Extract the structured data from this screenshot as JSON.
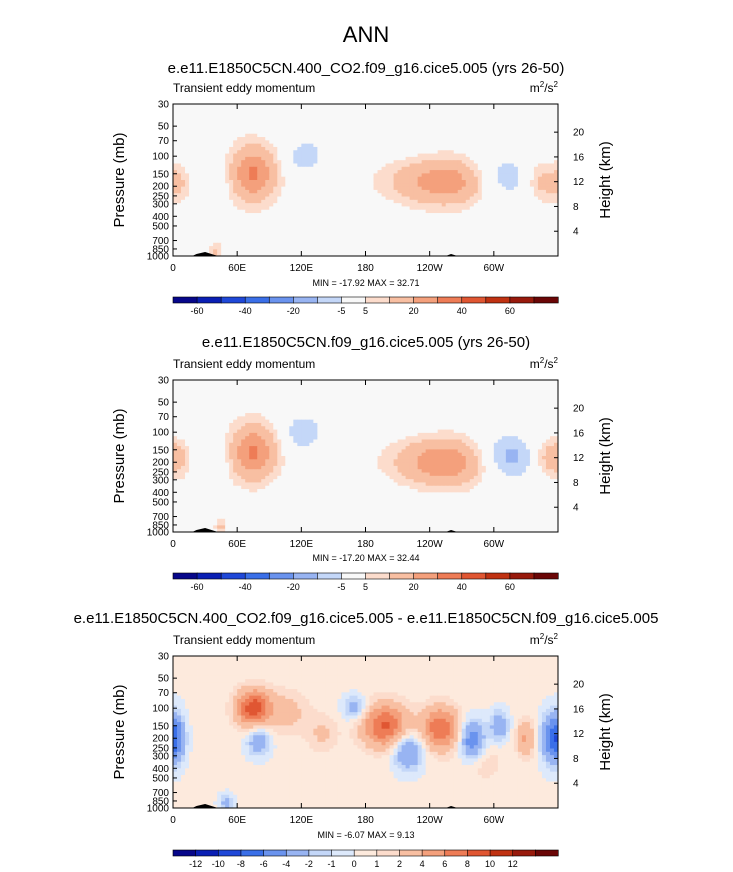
{
  "main_title": "ANN",
  "chart_data": [
    {
      "type": "heatmap",
      "title": "e.e11.E1850C5CN.400_CO2.f09_g16.cice5.005 (yrs 26-50)",
      "subtitle": "Transient eddy momentum",
      "units_base": "m",
      "units_exp1": "2",
      "units_mid": "/s",
      "units_exp2": "2",
      "ylabel_left": "Pressure (mb)",
      "ylabel_right": "Height (km)",
      "x_ticks": [
        "0",
        "60E",
        "120E",
        "180",
        "120W",
        "60W"
      ],
      "x_tick_values": [
        0,
        60,
        120,
        180,
        240,
        300
      ],
      "xlim": [
        0,
        360
      ],
      "y_ticks": [
        "30",
        "50",
        "70",
        "100",
        "150",
        "200",
        "250",
        "300",
        "400",
        "500",
        "700",
        "850",
        "1000"
      ],
      "y_tick_values": [
        30,
        50,
        70,
        100,
        150,
        200,
        250,
        300,
        400,
        500,
        700,
        850,
        1000
      ],
      "ylim": [
        30,
        1000
      ],
      "height_ticks": [
        "20",
        "16",
        "12",
        "8",
        "4"
      ],
      "height_values": [
        20,
        16,
        12,
        8,
        4
      ],
      "stats": "MIN = -17.92  MAX =  32.71",
      "min": -17.92,
      "max": 32.71,
      "colorbar_labels": [
        "-60",
        "-40",
        "-20",
        "-5",
        "5",
        "20",
        "40",
        "60"
      ],
      "colorbar_levels": [
        -70,
        -60,
        -50,
        -40,
        -30,
        -20,
        -10,
        -5,
        5,
        10,
        20,
        30,
        40,
        50,
        60,
        70
      ],
      "background_value": 2,
      "features": [
        {
          "lon": 75,
          "p": 150,
          "value": 30,
          "dlon": 14,
          "dp": 0.42
        },
        {
          "lon": 258,
          "p": 180,
          "value": 26,
          "dlon": 34,
          "dp": 0.36
        },
        {
          "lon": 345,
          "p": 180,
          "value": 12,
          "dlon": 10,
          "dp": 0.3
        },
        {
          "lon": 5,
          "p": 180,
          "value": 10,
          "dlon": 8,
          "dp": 0.3
        },
        {
          "lon": 124,
          "p": 100,
          "value": -11,
          "dlon": 13,
          "dp": 0.3
        },
        {
          "lon": 305,
          "p": 170,
          "value": -17,
          "dlon": 22,
          "dp": 0.4
        },
        {
          "lon": 45,
          "p": 160,
          "value": -5,
          "dlon": 6,
          "dp": 0.3
        },
        {
          "lon": 40,
          "p": 900,
          "value": 10,
          "dlon": 4,
          "dp": 0.15
        },
        {
          "lon": 15,
          "p": 60,
          "value": -4,
          "dlon": 8,
          "dp": 0.7
        },
        {
          "lon": 205,
          "p": 70,
          "value": -3,
          "dlon": 30,
          "dp": 0.3
        },
        {
          "lon": 170,
          "p": 600,
          "value": -3,
          "dlon": 50,
          "dp": 0.4
        },
        {
          "lon": 120,
          "p": 900,
          "value": -3,
          "dlon": 40,
          "dp": 0.2
        },
        {
          "lon": 295,
          "p": 600,
          "value": -4,
          "dlon": 10,
          "dp": 0.4
        }
      ]
    },
    {
      "type": "heatmap",
      "title": "e.e11.E1850C5CN.f09_g16.cice5.005 (yrs 26-50)",
      "subtitle": "Transient eddy momentum",
      "units_base": "m",
      "units_exp1": "2",
      "units_mid": "/s",
      "units_exp2": "2",
      "ylabel_left": "Pressure (mb)",
      "ylabel_right": "Height (km)",
      "x_ticks": [
        "0",
        "60E",
        "120E",
        "180",
        "120W",
        "60W"
      ],
      "x_tick_values": [
        0,
        60,
        120,
        180,
        240,
        300
      ],
      "xlim": [
        0,
        360
      ],
      "y_ticks": [
        "30",
        "50",
        "70",
        "100",
        "150",
        "200",
        "250",
        "300",
        "400",
        "500",
        "700",
        "850",
        "1000"
      ],
      "y_tick_values": [
        30,
        50,
        70,
        100,
        150,
        200,
        250,
        300,
        400,
        500,
        700,
        850,
        1000
      ],
      "ylim": [
        30,
        1000
      ],
      "height_ticks": [
        "20",
        "16",
        "12",
        "8",
        "4"
      ],
      "height_values": [
        20,
        16,
        12,
        8,
        4
      ],
      "stats": "MIN = -17.20  MAX =  32.44",
      "min": -17.2,
      "max": 32.44,
      "colorbar_labels": [
        "-60",
        "-40",
        "-20",
        "-5",
        "5",
        "20",
        "40",
        "60"
      ],
      "colorbar_levels": [
        -70,
        -60,
        -50,
        -40,
        -30,
        -20,
        -10,
        -5,
        5,
        10,
        20,
        30,
        40,
        50,
        60,
        70
      ],
      "background_value": 2,
      "features": [
        {
          "lon": 75,
          "p": 160,
          "value": 30,
          "dlon": 14,
          "dp": 0.42
        },
        {
          "lon": 255,
          "p": 200,
          "value": 28,
          "dlon": 30,
          "dp": 0.36
        },
        {
          "lon": 350,
          "p": 180,
          "value": 12,
          "dlon": 9,
          "dp": 0.3
        },
        {
          "lon": 5,
          "p": 180,
          "value": 12,
          "dlon": 8,
          "dp": 0.3
        },
        {
          "lon": 122,
          "p": 100,
          "value": -12,
          "dlon": 13,
          "dp": 0.3
        },
        {
          "lon": 310,
          "p": 180,
          "value": -17,
          "dlon": 22,
          "dp": 0.4
        },
        {
          "lon": 45,
          "p": 170,
          "value": -5,
          "dlon": 6,
          "dp": 0.3
        },
        {
          "lon": 45,
          "p": 900,
          "value": 10,
          "dlon": 4,
          "dp": 0.15
        },
        {
          "lon": 15,
          "p": 60,
          "value": -4,
          "dlon": 8,
          "dp": 0.7
        },
        {
          "lon": 205,
          "p": 70,
          "value": -3,
          "dlon": 30,
          "dp": 0.3
        },
        {
          "lon": 170,
          "p": 600,
          "value": -3,
          "dlon": 50,
          "dp": 0.4
        },
        {
          "lon": 120,
          "p": 900,
          "value": -3,
          "dlon": 40,
          "dp": 0.2
        }
      ]
    },
    {
      "type": "heatmap",
      "title": "e.e11.E1850C5CN.400_CO2.f09_g16.cice5.005 - e.e11.E1850C5CN.f09_g16.cice5.005",
      "subtitle": "Transient eddy momentum",
      "units_base": "m",
      "units_exp1": "2",
      "units_mid": "/s",
      "units_exp2": "2",
      "ylabel_left": "Pressure (mb)",
      "ylabel_right": "Height (km)",
      "x_ticks": [
        "0",
        "60E",
        "120E",
        "180",
        "120W",
        "60W"
      ],
      "x_tick_values": [
        0,
        60,
        120,
        180,
        240,
        300
      ],
      "xlim": [
        0,
        360
      ],
      "y_ticks": [
        "30",
        "50",
        "70",
        "100",
        "150",
        "200",
        "250",
        "300",
        "400",
        "500",
        "700",
        "850",
        "1000"
      ],
      "y_tick_values": [
        30,
        50,
        70,
        100,
        150,
        200,
        250,
        300,
        400,
        500,
        700,
        850,
        1000
      ],
      "ylim": [
        30,
        1000
      ],
      "height_ticks": [
        "20",
        "16",
        "12",
        "8",
        "4"
      ],
      "height_values": [
        20,
        16,
        12,
        8,
        4
      ],
      "stats": "MIN = -6.07  MAX =  9.13",
      "min": -6.07,
      "max": 9.13,
      "colorbar_labels": [
        "-12",
        "-10",
        "-8",
        "-6",
        "-4",
        "-2",
        "-1",
        "0",
        "1",
        "2",
        "4",
        "6",
        "8",
        "10",
        "12"
      ],
      "colorbar_levels": [
        -13,
        -12,
        -10,
        -8,
        -6,
        -4,
        -2,
        -1,
        0,
        1,
        2,
        4,
        6,
        8,
        10,
        12,
        13
      ],
      "background_value": 0.3,
      "features": [
        {
          "lon": 75,
          "p": 100,
          "value": 9,
          "dlon": 11,
          "dp": 0.3
        },
        {
          "lon": 105,
          "p": 110,
          "value": 2.5,
          "dlon": 15,
          "dp": 0.35
        },
        {
          "lon": 198,
          "p": 150,
          "value": 8,
          "dlon": 15,
          "dp": 0.35
        },
        {
          "lon": 250,
          "p": 160,
          "value": 7.5,
          "dlon": 12,
          "dp": 0.35
        },
        {
          "lon": 330,
          "p": 200,
          "value": 4,
          "dlon": 6,
          "dp": 0.3
        },
        {
          "lon": 170,
          "p": 100,
          "value": -3.5,
          "dlon": 8,
          "dp": 0.2
        },
        {
          "lon": 220,
          "p": 270,
          "value": -5,
          "dlon": 10,
          "dp": 0.3
        },
        {
          "lon": 280,
          "p": 210,
          "value": -6,
          "dlon": 8,
          "dp": 0.32
        },
        {
          "lon": 305,
          "p": 150,
          "value": -4,
          "dlon": 6,
          "dp": 0.25
        },
        {
          "lon": 355,
          "p": 200,
          "value": -6,
          "dlon": 8,
          "dp": 0.4
        },
        {
          "lon": 3,
          "p": 200,
          "value": -4,
          "dlon": 6,
          "dp": 0.4
        },
        {
          "lon": 80,
          "p": 210,
          "value": -4,
          "dlon": 8,
          "dp": 0.25
        },
        {
          "lon": 50,
          "p": 900,
          "value": -3,
          "dlon": 5,
          "dp": 0.15
        },
        {
          "lon": 140,
          "p": 180,
          "value": 2,
          "dlon": 10,
          "dp": 0.3
        },
        {
          "lon": 290,
          "p": 350,
          "value": 1.5,
          "dlon": 12,
          "dp": 0.3
        }
      ]
    }
  ],
  "colors": {
    "colorbar_16": [
      "#07078a",
      "#0a1fb4",
      "#1f48d8",
      "#3a6fe8",
      "#6a93ee",
      "#98b4f2",
      "#c4d7f8",
      "#f8f8f8",
      "#fcdccc",
      "#f8bfa2",
      "#f4a07c",
      "#ee7c56",
      "#e05632",
      "#c03212",
      "#981a0c",
      "#6a0606"
    ],
    "colorbar_15": [
      "#07078a",
      "#0a1fb4",
      "#1f48d8",
      "#3a6fe8",
      "#6a93ee",
      "#98b4f2",
      "#c4d7f8",
      "#dde9fb",
      "#fdeadd",
      "#fcdccc",
      "#f8bfa2",
      "#f4a07c",
      "#ee7c56",
      "#e05632",
      "#c03212",
      "#981a0c",
      "#6a0606"
    ],
    "topography": "#000000"
  }
}
